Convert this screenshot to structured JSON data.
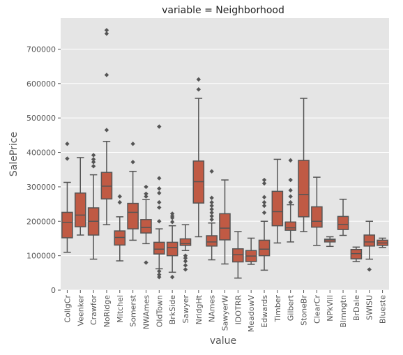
{
  "chart_data": {
    "type": "box",
    "title": "variable = Neighborhood",
    "xlabel": "value",
    "ylabel": "SalePrice",
    "ylim": [
      0,
      790000
    ],
    "yticks": [
      0,
      100000,
      200000,
      300000,
      400000,
      500000,
      600000,
      700000
    ],
    "ytick_labels": [
      "0",
      "100000",
      "200000",
      "300000",
      "400000",
      "500000",
      "600000",
      "700000"
    ],
    "grid": true,
    "background": "#e5e5e5",
    "grid_color": "#ffffff",
    "box_fill": "#c05a44",
    "line_color": "#555555",
    "boxes": [
      {
        "category": "CollgCr",
        "whislo": 110000,
        "q1": 152000,
        "med": 197000,
        "q3": 226000,
        "whishi": 313000,
        "fliers": [
          382000,
          425000
        ]
      },
      {
        "category": "Veenker",
        "whislo": 160000,
        "q1": 184000,
        "med": 218000,
        "q3": 282000,
        "whishi": 385000,
        "fliers": []
      },
      {
        "category": "Crawfor",
        "whislo": 90000,
        "q1": 160000,
        "med": 200000,
        "q3": 239000,
        "whishi": 335000,
        "fliers": [
          360000,
          372000,
          380000,
          392000
        ]
      },
      {
        "category": "NoRidge",
        "whislo": 190000,
        "q1": 265000,
        "med": 302000,
        "q3": 342000,
        "whishi": 432000,
        "fliers": [
          465000,
          625000,
          745000,
          755000
        ]
      },
      {
        "category": "Mitchel",
        "whislo": 85000,
        "q1": 131000,
        "med": 153000,
        "q3": 172000,
        "whishi": 213000,
        "fliers": [
          255000,
          272000
        ]
      },
      {
        "category": "Somerst",
        "whislo": 145000,
        "q1": 178000,
        "med": 226000,
        "q3": 252000,
        "whishi": 345000,
        "fliers": [
          372000,
          425000
        ]
      },
      {
        "category": "NWAmes",
        "whislo": 135000,
        "q1": 166000,
        "med": 182000,
        "q3": 205000,
        "whishi": 263000,
        "fliers": [
          80000,
          272000,
          280000,
          300000
        ]
      },
      {
        "category": "OldTown",
        "whislo": 62000,
        "q1": 105000,
        "med": 119000,
        "q3": 139000,
        "whishi": 178000,
        "fliers": [
          38000,
          45000,
          55000,
          200000,
          240000,
          255000,
          282000,
          295000,
          325000,
          475000
        ]
      },
      {
        "category": "BrkSide",
        "whislo": 52000,
        "q1": 100000,
        "med": 124000,
        "q3": 139000,
        "whishi": 187000,
        "fliers": [
          38000,
          198000,
          210000,
          215000,
          222000
        ]
      },
      {
        "category": "Sawyer",
        "whislo": 115000,
        "q1": 130000,
        "med": 135000,
        "q3": 149000,
        "whishi": 190000,
        "fliers": [
          60000,
          72000,
          84000,
          93000,
          100000
        ]
      },
      {
        "category": "NridgHt",
        "whislo": 155000,
        "q1": 253000,
        "med": 315000,
        "q3": 375000,
        "whishi": 557000,
        "fliers": [
          583000,
          612000
        ]
      },
      {
        "category": "NAmes",
        "whislo": 88000,
        "q1": 128000,
        "med": 140000,
        "q3": 158000,
        "whishi": 195000,
        "fliers": [
          205000,
          215000,
          225000,
          235000,
          245000,
          255000,
          268000,
          345000
        ]
      },
      {
        "category": "SawyerW",
        "whislo": 76000,
        "q1": 146000,
        "med": 180000,
        "q3": 222000,
        "whishi": 320000,
        "fliers": []
      },
      {
        "category": "IDOTRR",
        "whislo": 35000,
        "q1": 82000,
        "med": 103000,
        "q3": 120000,
        "whishi": 170000,
        "fliers": []
      },
      {
        "category": "MeadowV",
        "whislo": 75000,
        "q1": 83000,
        "med": 99000,
        "q3": 115000,
        "whishi": 151000,
        "fliers": []
      },
      {
        "category": "Edwards",
        "whislo": 58000,
        "q1": 100000,
        "med": 119000,
        "q3": 145000,
        "whishi": 200000,
        "fliers": [
          225000,
          245000,
          255000,
          270000,
          310000,
          320000
        ]
      },
      {
        "category": "Timber",
        "whislo": 137000,
        "q1": 187000,
        "med": 228000,
        "q3": 287000,
        "whishi": 380000,
        "fliers": []
      },
      {
        "category": "Gilbert",
        "whislo": 140000,
        "q1": 174000,
        "med": 181000,
        "q3": 198000,
        "whishi": 248000,
        "fliers": [
          255000,
          272000,
          290000,
          320000,
          377000
        ]
      },
      {
        "category": "StoneBr",
        "whislo": 170000,
        "q1": 213000,
        "med": 278000,
        "q3": 377000,
        "whishi": 557000,
        "fliers": []
      },
      {
        "category": "ClearCr",
        "whislo": 130000,
        "q1": 183000,
        "med": 200000,
        "q3": 242000,
        "whishi": 328000,
        "fliers": []
      },
      {
        "category": "NPkVill",
        "whislo": 127000,
        "q1": 140000,
        "med": 146000,
        "q3": 148000,
        "whishi": 155000,
        "fliers": []
      },
      {
        "category": "Blmngtn",
        "whislo": 159000,
        "q1": 176000,
        "med": 191000,
        "q3": 214000,
        "whishi": 264000,
        "fliers": []
      },
      {
        "category": "BrDale",
        "whislo": 83000,
        "q1": 91000,
        "med": 106000,
        "q3": 118000,
        "whishi": 125000,
        "fliers": []
      },
      {
        "category": "SWISU",
        "whislo": 90000,
        "q1": 128000,
        "med": 140000,
        "q3": 160000,
        "whishi": 200000,
        "fliers": [
          60000
        ]
      },
      {
        "category": "Blueste",
        "whislo": 124000,
        "q1": 130000,
        "med": 137000,
        "q3": 145000,
        "whishi": 151000,
        "fliers": []
      }
    ]
  }
}
